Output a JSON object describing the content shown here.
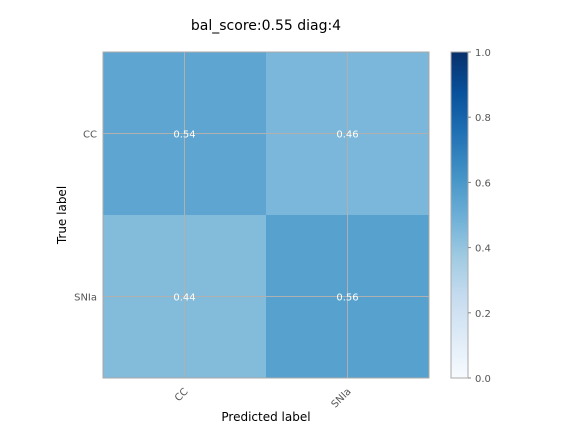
{
  "chart_data": {
    "type": "heatmap",
    "title": "bal_score:0.55 diag:4",
    "xlabel": "Predicted label",
    "ylabel": "True label",
    "x_categories": [
      "CC",
      "SNIa"
    ],
    "y_categories": [
      "CC",
      "SNIa"
    ],
    "values": [
      [
        0.54,
        0.46
      ],
      [
        0.44,
        0.56
      ]
    ],
    "value_labels": [
      [
        "0.54",
        "0.46"
      ],
      [
        "0.44",
        "0.56"
      ]
    ],
    "colormap": "Blues",
    "vmin": 0.0,
    "vmax": 1.0,
    "colorbar_ticks": [
      0.0,
      0.2,
      0.4,
      0.6,
      0.8,
      1.0
    ],
    "colorbar_tick_labels": [
      "0.0",
      "0.2",
      "0.4",
      "0.6",
      "0.8",
      "1.0"
    ],
    "grid": true,
    "colors": {
      "grid": "#b0b0b0",
      "frame": "#aaaaaa",
      "cell_text": "#ffffff"
    }
  }
}
